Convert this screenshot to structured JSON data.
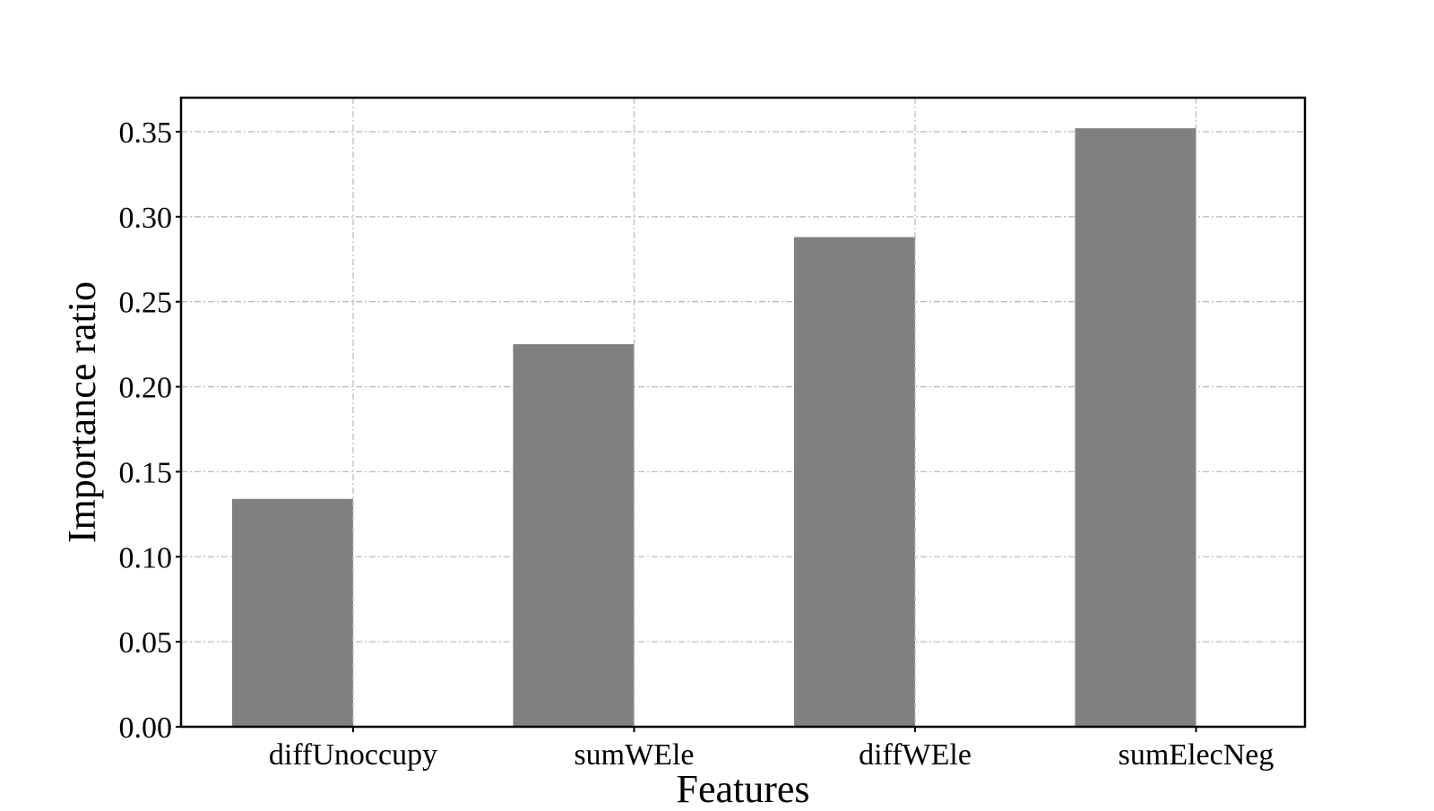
{
  "chart_data": {
    "type": "bar",
    "title": "",
    "xlabel": "Features",
    "ylabel": "Importance ratio",
    "categories": [
      "diffUnoccupy",
      "sumWEle",
      "diffWEle",
      "sumElecNeg"
    ],
    "values": [
      0.134,
      0.225,
      0.288,
      0.352
    ],
    "ylim": [
      0,
      0.37
    ],
    "yticks": [
      "0.00",
      "0.05",
      "0.10",
      "0.15",
      "0.20",
      "0.25",
      "0.30",
      "0.35"
    ],
    "grid": true,
    "legend": "none",
    "colors": {
      "bar": "#808080",
      "grid": "#bdbdbd",
      "axis": "#000000"
    }
  }
}
